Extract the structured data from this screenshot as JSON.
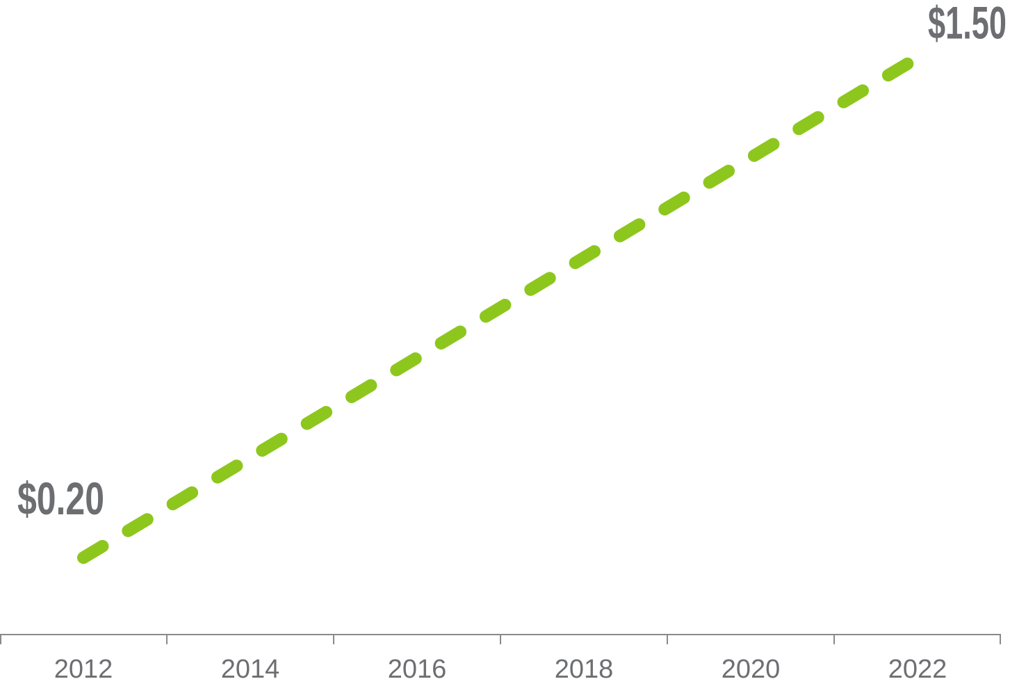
{
  "chart_data": {
    "type": "line",
    "x": [
      2012,
      2022
    ],
    "series": [
      {
        "color": "#8dc71e",
        "values": [
          0.2,
          1.5
        ],
        "value_labels": [
          "$0.20",
          "$1.50"
        ]
      }
    ],
    "xlim": [
      2011,
      2023
    ],
    "xticks": [
      2012,
      2014,
      2016,
      2018,
      2020,
      2022
    ],
    "ylim": [
      0,
      1.65
    ]
  }
}
